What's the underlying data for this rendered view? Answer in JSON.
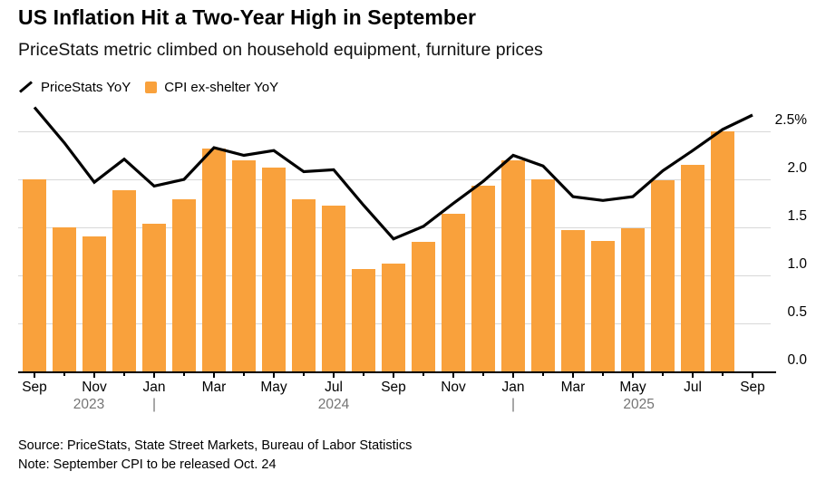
{
  "header": {
    "title": "US Inflation Hit a Two-Year High in September",
    "subtitle": "PriceStats metric climbed on household equipment, furniture prices"
  },
  "legend": {
    "items": [
      {
        "label": "PriceStats YoY",
        "swatch": "line-icon",
        "color": "#000000"
      },
      {
        "label": "CPI ex-shelter YoY",
        "swatch": "bar-swatch",
        "color": "#f9a13c"
      }
    ]
  },
  "footer": {
    "source": "Source: PriceStats, State Street Markets, Bureau of Labor Statistics",
    "note": "Note: September CPI to be released Oct. 24"
  },
  "colors": {
    "bar": "#f9a13c",
    "line": "#000000",
    "grid": "#d8d8d8",
    "axis": "#000000",
    "year_text": "#757575"
  },
  "chart_data": {
    "type": "bar+line",
    "title": "US Inflation Hit a Two-Year High in September",
    "subtitle": "PriceStats metric climbed on household equipment, furniture prices",
    "unit": "percent YoY",
    "x": [
      "Sep 2023",
      "Oct 2023",
      "Nov 2023",
      "Dec 2023",
      "Jan 2024",
      "Feb 2024",
      "Mar 2024",
      "Apr 2024",
      "May 2024",
      "Jun 2024",
      "Jul 2024",
      "Aug 2024",
      "Sep 2024",
      "Oct 2024",
      "Nov 2024",
      "Dec 2024",
      "Jan 2025",
      "Feb 2025",
      "Mar 2025",
      "Apr 2025",
      "May 2025",
      "Jun 2025",
      "Jul 2025",
      "Aug 2025",
      "Sep 2025"
    ],
    "series": [
      {
        "name": "PriceStats YoY",
        "type": "line",
        "color": "#000000",
        "values": [
          2.75,
          2.38,
          1.97,
          2.21,
          1.93,
          2.0,
          2.33,
          2.25,
          2.3,
          2.08,
          2.1,
          1.73,
          1.38,
          1.51,
          1.75,
          1.98,
          2.25,
          2.14,
          1.82,
          1.78,
          1.82,
          2.09,
          2.3,
          2.52,
          2.67
        ]
      },
      {
        "name": "CPI ex-shelter YoY",
        "type": "bar",
        "color": "#f9a13c",
        "values": [
          2.0,
          1.5,
          1.41,
          1.89,
          1.54,
          1.79,
          2.32,
          2.2,
          2.12,
          1.79,
          1.73,
          1.07,
          1.12,
          1.35,
          1.64,
          1.93,
          2.2,
          2.0,
          1.47,
          1.36,
          1.49,
          1.99,
          2.15,
          2.5,
          null
        ]
      }
    ],
    "ylim": [
      0,
      2.85
    ],
    "yticks": [
      {
        "value": 2.5,
        "label": "2.5%"
      },
      {
        "value": 2.0,
        "label": "2.0"
      },
      {
        "value": 1.5,
        "label": "1.5"
      },
      {
        "value": 1.0,
        "label": "1.0"
      },
      {
        "value": 0.5,
        "label": "0.5"
      },
      {
        "value": 0.0,
        "label": "0.0"
      }
    ],
    "xticks": [
      {
        "index": 0,
        "label": "Sep"
      },
      {
        "index": 2,
        "label": "Nov"
      },
      {
        "index": 4,
        "label": "Jan"
      },
      {
        "index": 6,
        "label": "Mar"
      },
      {
        "index": 8,
        "label": "May"
      },
      {
        "index": 10,
        "label": "Jul"
      },
      {
        "index": 12,
        "label": "Sep"
      },
      {
        "index": 14,
        "label": "Nov"
      },
      {
        "index": 16,
        "label": "Jan"
      },
      {
        "index": 18,
        "label": "Mar"
      },
      {
        "index": 20,
        "label": "May"
      },
      {
        "index": 22,
        "label": "Jul"
      },
      {
        "index": 24,
        "label": "Sep"
      }
    ],
    "year_labels": [
      {
        "index": 1.82,
        "label": "2023"
      },
      {
        "index": 10,
        "label": "2024"
      },
      {
        "index": 20.2,
        "label": "2025"
      }
    ],
    "year_separators": [
      {
        "index": 4,
        "label": "|"
      },
      {
        "index": 16,
        "label": "|"
      }
    ],
    "grid": true,
    "legend_position": "top-left",
    "y_axis_side": "right"
  }
}
